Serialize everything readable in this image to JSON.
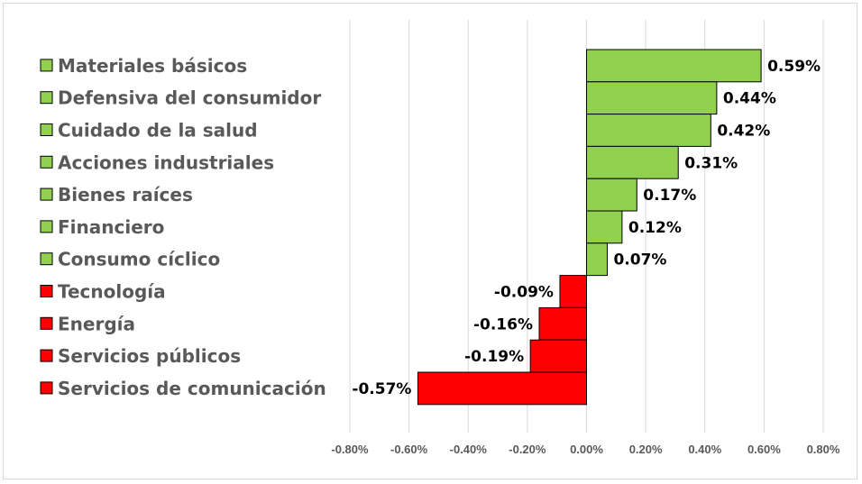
{
  "chart_data": {
    "type": "bar",
    "orientation": "horizontal",
    "categories": [
      "Materiales básicos",
      "Defensiva del consumidor",
      "Cuidado de la salud",
      "Acciones industriales",
      "Bienes raíces",
      "Financiero",
      "Consumo cíclico",
      "Tecnología",
      "Energía",
      "Servicios públicos",
      "Servicios de comunicación"
    ],
    "values": [
      0.59,
      0.44,
      0.42,
      0.31,
      0.17,
      0.12,
      0.07,
      -0.09,
      -0.16,
      -0.19,
      -0.57
    ],
    "value_labels": [
      "0.59%",
      "0.44%",
      "0.42%",
      "0.31%",
      "0.17%",
      "0.12%",
      "0.07%",
      "-0.09%",
      "-0.16%",
      "-0.19%",
      "-0.57%"
    ],
    "xlim": [
      -0.8,
      0.8
    ],
    "x_ticks": [
      -0.8,
      -0.6,
      -0.4,
      -0.2,
      0.0,
      0.2,
      0.4,
      0.6,
      0.8
    ],
    "x_tick_labels": [
      "-0.80%",
      "-0.60%",
      "-0.40%",
      "-0.20%",
      "0.00%",
      "0.20%",
      "0.40%",
      "0.60%",
      "0.80%"
    ],
    "grid": "vertical",
    "legend_placement": "left",
    "colors": {
      "positive": "#92d050",
      "negative": "#ff0000",
      "bar_border": "#000000",
      "grid": "#d9d9d9"
    },
    "title": "",
    "xlabel": "",
    "ylabel": ""
  }
}
